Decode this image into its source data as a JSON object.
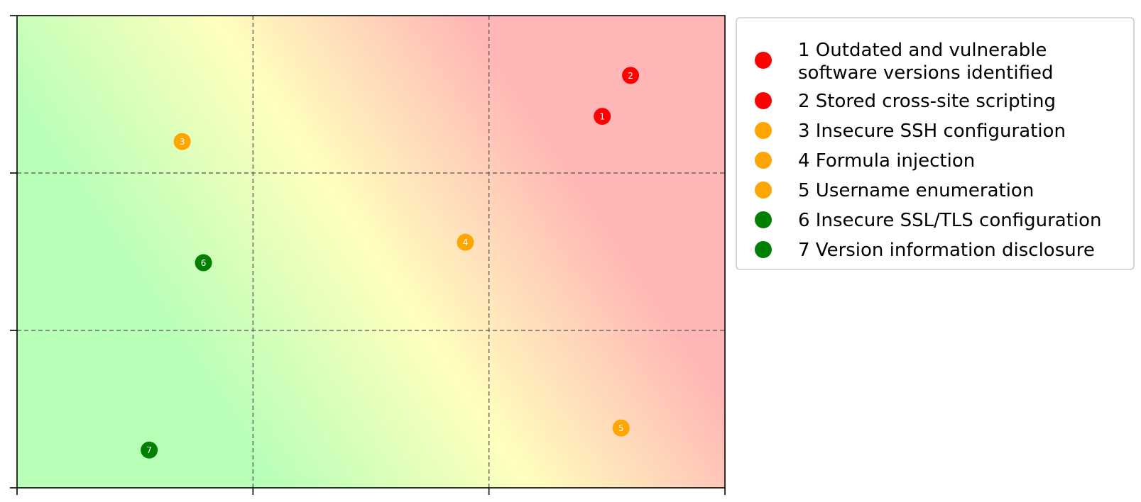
{
  "chart_data": {
    "type": "scatter",
    "title": "",
    "xlabel": "",
    "ylabel": "",
    "xlim": [
      0,
      3
    ],
    "ylim": [
      0,
      3
    ],
    "grid": true,
    "legend_position": "outside-right",
    "background": "diagonal risk gradient: green (bottom-left) to yellow (diagonal) to red (top-right)",
    "colors": {
      "red": "#ff0000",
      "orange": "#ffa500",
      "green": "#008000",
      "zone_green": "#b8ffb8",
      "zone_yellow": "#ffffbe",
      "zone_red": "#ffb6b6"
    },
    "points": [
      {
        "label": "1",
        "name": "1 Outdated and vulnerable software versions identified",
        "x": 2.48,
        "y": 2.36,
        "color": "#ff0000"
      },
      {
        "label": "2",
        "name": "2 Stored cross-site scripting",
        "x": 2.6,
        "y": 2.62,
        "color": "#ff0000"
      },
      {
        "label": "3",
        "name": "3 Insecure SSH configuration",
        "x": 0.7,
        "y": 2.2,
        "color": "#ffa500"
      },
      {
        "label": "4",
        "name": "4 Formula injection",
        "x": 1.9,
        "y": 1.56,
        "color": "#ffa500"
      },
      {
        "label": "5",
        "name": "5 Username enumeration",
        "x": 2.56,
        "y": 0.38,
        "color": "#ffa500"
      },
      {
        "label": "6",
        "name": "6 Insecure SSL/TLS configuration",
        "x": 0.79,
        "y": 1.43,
        "color": "#008000"
      },
      {
        "label": "7",
        "name": "7 Version information disclosure",
        "x": 0.56,
        "y": 0.24,
        "color": "#008000"
      }
    ],
    "legend": [
      {
        "lines": [
          "1 Outdated and vulnerable",
          "software versions identified"
        ],
        "color": "#ff0000"
      },
      {
        "lines": [
          "2 Stored cross-site scripting"
        ],
        "color": "#ff0000"
      },
      {
        "lines": [
          "3 Insecure SSH configuration"
        ],
        "color": "#ffa500"
      },
      {
        "lines": [
          "4 Formula injection"
        ],
        "color": "#ffa500"
      },
      {
        "lines": [
          "5 Username enumeration"
        ],
        "color": "#ffa500"
      },
      {
        "lines": [
          "6 Insecure SSL/TLS configuration"
        ],
        "color": "#008000"
      },
      {
        "lines": [
          "7 Version information disclosure"
        ],
        "color": "#008000"
      }
    ]
  }
}
